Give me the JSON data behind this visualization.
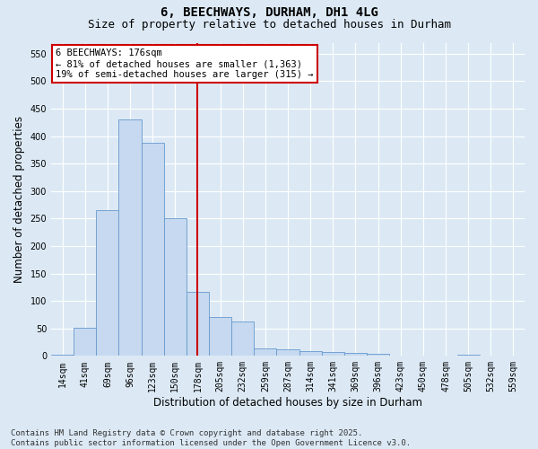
{
  "title": "6, BEECHWAYS, DURHAM, DH1 4LG",
  "subtitle": "Size of property relative to detached houses in Durham",
  "xlabel": "Distribution of detached houses by size in Durham",
  "ylabel": "Number of detached properties",
  "categories": [
    "14sqm",
    "41sqm",
    "69sqm",
    "96sqm",
    "123sqm",
    "150sqm",
    "178sqm",
    "205sqm",
    "232sqm",
    "259sqm",
    "287sqm",
    "314sqm",
    "341sqm",
    "369sqm",
    "396sqm",
    "423sqm",
    "450sqm",
    "478sqm",
    "505sqm",
    "532sqm",
    "559sqm"
  ],
  "values": [
    2,
    52,
    265,
    430,
    387,
    250,
    117,
    70,
    62,
    13,
    12,
    8,
    7,
    6,
    4,
    1,
    0,
    0,
    2,
    0,
    0
  ],
  "bar_color": "#c6d9f0",
  "bar_edge_color": "#6699cc",
  "vline_x_index": 6,
  "vline_color": "#cc0000",
  "annotation_text": "6 BEECHWAYS: 176sqm\n← 81% of detached houses are smaller (1,363)\n19% of semi-detached houses are larger (315) →",
  "annotation_box_facecolor": "#ffffff",
  "annotation_box_edgecolor": "#cc0000",
  "ylim": [
    0,
    570
  ],
  "yticks": [
    0,
    50,
    100,
    150,
    200,
    250,
    300,
    350,
    400,
    450,
    500,
    550
  ],
  "footer_text": "Contains HM Land Registry data © Crown copyright and database right 2025.\nContains public sector information licensed under the Open Government Licence v3.0.",
  "bg_color": "#dce9f5",
  "plot_bg_color": "#dce9f5",
  "grid_color": "#ffffff",
  "title_fontsize": 10,
  "subtitle_fontsize": 9,
  "tick_fontsize": 7,
  "label_fontsize": 8.5,
  "annotation_fontsize": 7.5,
  "footer_fontsize": 6.5
}
